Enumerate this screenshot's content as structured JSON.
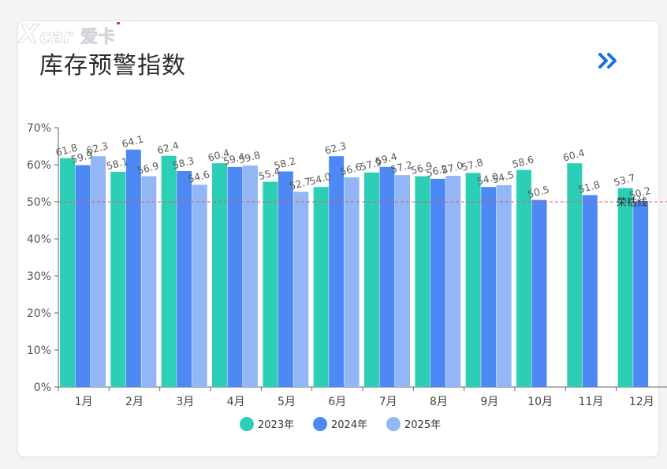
{
  "header": {
    "title": "库存预警指数",
    "watermark_text": "X car 爱卡",
    "more_icon": "double-chevron-right-icon"
  },
  "colors": {
    "series": [
      "#2ccfb6",
      "#4d88f5",
      "#93b6f7"
    ],
    "threshold": "#e05a4e",
    "accent": "#1a6fe8"
  },
  "chart_data": {
    "type": "bar",
    "categories": [
      "1月",
      "2月",
      "3月",
      "4月",
      "5月",
      "6月",
      "7月",
      "8月",
      "9月",
      "10月",
      "11月",
      "12月"
    ],
    "series": [
      {
        "name": "2023年",
        "values": [
          61.8,
          58.1,
          62.4,
          60.4,
          55.4,
          54.0,
          57.9,
          56.9,
          57.8,
          58.6,
          60.4,
          53.7
        ]
      },
      {
        "name": "2024年",
        "values": [
          59.9,
          64.1,
          58.3,
          59.4,
          58.2,
          62.3,
          59.4,
          56.2,
          54.0,
          50.5,
          51.8,
          50.2
        ]
      },
      {
        "name": "2025年",
        "values": [
          62.3,
          56.9,
          54.6,
          59.8,
          52.7,
          56.6,
          57.2,
          57.0,
          54.5,
          null,
          null,
          null
        ]
      }
    ],
    "data_labels": [
      [
        "61.8",
        "58.1",
        "62.4",
        "60.4",
        "55.4",
        "54.0",
        "57.9",
        "56.9",
        "57.8",
        "58.6",
        "60.4",
        "53.7"
      ],
      [
        "59.9",
        "64.1",
        "58.3",
        "59.4",
        "58.2",
        "62.3",
        "59.4",
        "56.2",
        "54.0",
        "50.5",
        "51.8",
        "50.2"
      ],
      [
        "62.3",
        "56.9",
        "54.6",
        "59.8",
        "52.7",
        "56.6",
        "57.2",
        "57.0",
        "54.5",
        "",
        "",
        ""
      ]
    ],
    "yticks": [
      "0%",
      "10%",
      "20%",
      "30%",
      "40%",
      "50%",
      "60%",
      "70%"
    ],
    "ylim": [
      0,
      70
    ],
    "threshold": {
      "value": 50,
      "label": "荣枯线"
    },
    "legend": {
      "position": "bottom",
      "items": [
        "2023年",
        "2024年",
        "2025年"
      ]
    },
    "title": "库存预警指数",
    "xlabel": "",
    "ylabel": ""
  }
}
